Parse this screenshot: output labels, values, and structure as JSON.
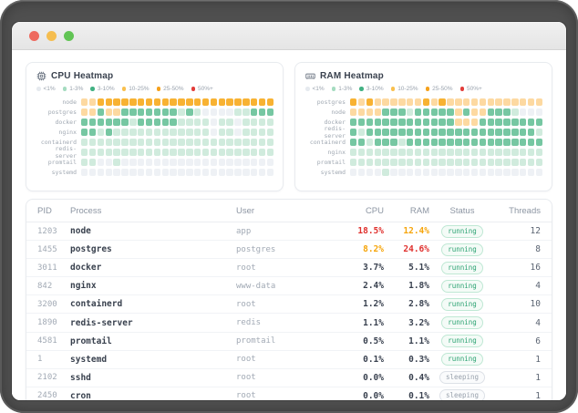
{
  "window": {
    "traffic_lights": {
      "close": "#ee6a5f",
      "minimize": "#f5bd4f",
      "maximize": "#61c454"
    }
  },
  "cell_colors": [
    "#eef1f5",
    "#d0ebdd",
    "#76c7a2",
    "#fdd9a1",
    "#f8b232"
  ],
  "value_colors": {
    "high": "#e0312e",
    "med": "#f6a50b",
    "normal": "#3a4250"
  },
  "legend": [
    {
      "label": "<1%",
      "color": "#e6eaef"
    },
    {
      "label": "1-3%",
      "color": "#a5dcc0"
    },
    {
      "label": "3-10%",
      "color": "#43b183"
    },
    {
      "label": "10-25%",
      "color": "#f9c04f"
    },
    {
      "label": "25-50%",
      "color": "#f5a11c"
    },
    {
      "label": "50%+",
      "color": "#e23d3a"
    }
  ],
  "panels": [
    {
      "title": "CPU Heatmap",
      "icon": "cpu-icon",
      "rows": [
        {
          "label": "node",
          "cells": [
            3,
            3,
            4,
            4,
            4,
            4,
            4,
            4,
            4,
            4,
            4,
            4,
            4,
            4,
            4,
            4,
            4,
            4,
            4,
            4,
            4,
            4,
            4,
            4
          ]
        },
        {
          "label": "postgres",
          "cells": [
            3,
            3,
            2,
            3,
            3,
            2,
            2,
            2,
            2,
            2,
            2,
            2,
            1,
            2,
            1,
            0,
            0,
            0,
            0,
            1,
            1,
            2,
            2,
            2
          ]
        },
        {
          "label": "docker",
          "cells": [
            2,
            2,
            2,
            2,
            2,
            2,
            1,
            2,
            2,
            2,
            2,
            2,
            1,
            1,
            1,
            1,
            0,
            1,
            1,
            0,
            1,
            1,
            1,
            1
          ]
        },
        {
          "label": "nginx",
          "cells": [
            2,
            2,
            1,
            2,
            1,
            1,
            1,
            1,
            1,
            1,
            1,
            1,
            1,
            1,
            1,
            1,
            0,
            1,
            1,
            0,
            1,
            1,
            1,
            1
          ]
        },
        {
          "label": "containerd",
          "cells": [
            1,
            1,
            1,
            1,
            1,
            1,
            1,
            1,
            1,
            1,
            1,
            1,
            1,
            1,
            1,
            1,
            1,
            1,
            1,
            1,
            1,
            1,
            1,
            1
          ]
        },
        {
          "label": "redis-server",
          "cells": [
            1,
            1,
            1,
            1,
            1,
            1,
            1,
            1,
            1,
            1,
            1,
            1,
            1,
            1,
            1,
            1,
            1,
            1,
            1,
            1,
            1,
            1,
            1,
            1
          ]
        },
        {
          "label": "promtail",
          "cells": [
            1,
            1,
            0,
            0,
            1,
            0,
            0,
            0,
            0,
            0,
            0,
            0,
            0,
            0,
            0,
            0,
            0,
            0,
            0,
            0,
            0,
            0,
            0,
            0
          ]
        },
        {
          "label": "systemd",
          "cells": [
            0,
            0,
            0,
            0,
            0,
            0,
            0,
            0,
            0,
            0,
            0,
            0,
            0,
            0,
            0,
            0,
            0,
            0,
            0,
            0,
            0,
            0,
            0,
            0
          ]
        }
      ]
    },
    {
      "title": "RAM Heatmap",
      "icon": "ram-icon",
      "rows": [
        {
          "label": "postgres",
          "cells": [
            4,
            3,
            4,
            3,
            3,
            3,
            3,
            3,
            3,
            4,
            3,
            4,
            3,
            3,
            3,
            3,
            3,
            3,
            3,
            3,
            3,
            3,
            3,
            3
          ]
        },
        {
          "label": "node",
          "cells": [
            3,
            3,
            3,
            3,
            2,
            2,
            2,
            1,
            2,
            2,
            2,
            2,
            2,
            3,
            2,
            3,
            3,
            2,
            2,
            2,
            1,
            0,
            0,
            0
          ]
        },
        {
          "label": "docker",
          "cells": [
            2,
            2,
            2,
            2,
            2,
            2,
            2,
            2,
            2,
            2,
            2,
            2,
            2,
            3,
            3,
            3,
            2,
            2,
            2,
            2,
            2,
            2,
            2,
            2
          ]
        },
        {
          "label": "redis-server",
          "cells": [
            2,
            1,
            2,
            2,
            2,
            2,
            2,
            2,
            2,
            2,
            2,
            2,
            2,
            2,
            2,
            2,
            2,
            2,
            2,
            2,
            2,
            2,
            2,
            1
          ]
        },
        {
          "label": "containerd",
          "cells": [
            2,
            2,
            1,
            2,
            2,
            2,
            1,
            2,
            2,
            2,
            2,
            2,
            2,
            2,
            2,
            2,
            2,
            2,
            2,
            2,
            2,
            2,
            2,
            2
          ]
        },
        {
          "label": "nginx",
          "cells": [
            1,
            1,
            1,
            1,
            1,
            1,
            1,
            1,
            1,
            1,
            1,
            1,
            1,
            1,
            1,
            1,
            1,
            1,
            1,
            1,
            1,
            1,
            1,
            1
          ]
        },
        {
          "label": "promtail",
          "cells": [
            1,
            1,
            1,
            1,
            1,
            1,
            1,
            1,
            1,
            1,
            1,
            1,
            1,
            1,
            1,
            1,
            1,
            1,
            1,
            1,
            1,
            1,
            1,
            1
          ]
        },
        {
          "label": "systemd",
          "cells": [
            0,
            0,
            0,
            0,
            1,
            0,
            0,
            0,
            0,
            0,
            0,
            0,
            0,
            0,
            0,
            0,
            0,
            0,
            0,
            0,
            0,
            0,
            0,
            0
          ]
        }
      ]
    }
  ],
  "table": {
    "columns": [
      "PID",
      "Process",
      "User",
      "CPU",
      "RAM",
      "Status",
      "Threads"
    ],
    "rows": [
      {
        "pid": "1203",
        "process": "node",
        "user": "app",
        "cpu": "18.5%",
        "cpu_level": "high",
        "ram": "12.4%",
        "ram_level": "med",
        "status": "running",
        "threads": "12"
      },
      {
        "pid": "1455",
        "process": "postgres",
        "user": "postgres",
        "cpu": "8.2%",
        "cpu_level": "med",
        "ram": "24.6%",
        "ram_level": "high",
        "status": "running",
        "threads": "8"
      },
      {
        "pid": "3011",
        "process": "docker",
        "user": "root",
        "cpu": "3.7%",
        "cpu_level": "normal",
        "ram": "5.1%",
        "ram_level": "normal",
        "status": "running",
        "threads": "16"
      },
      {
        "pid": "842",
        "process": "nginx",
        "user": "www-data",
        "cpu": "2.4%",
        "cpu_level": "normal",
        "ram": "1.8%",
        "ram_level": "normal",
        "status": "running",
        "threads": "4"
      },
      {
        "pid": "3200",
        "process": "containerd",
        "user": "root",
        "cpu": "1.2%",
        "cpu_level": "normal",
        "ram": "2.8%",
        "ram_level": "normal",
        "status": "running",
        "threads": "10"
      },
      {
        "pid": "1890",
        "process": "redis-server",
        "user": "redis",
        "cpu": "1.1%",
        "cpu_level": "normal",
        "ram": "3.2%",
        "ram_level": "normal",
        "status": "running",
        "threads": "4"
      },
      {
        "pid": "4581",
        "process": "promtail",
        "user": "promtail",
        "cpu": "0.5%",
        "cpu_level": "normal",
        "ram": "1.1%",
        "ram_level": "normal",
        "status": "running",
        "threads": "6"
      },
      {
        "pid": "1",
        "process": "systemd",
        "user": "root",
        "cpu": "0.1%",
        "cpu_level": "normal",
        "ram": "0.3%",
        "ram_level": "normal",
        "status": "running",
        "threads": "1"
      },
      {
        "pid": "2102",
        "process": "sshd",
        "user": "root",
        "cpu": "0.0%",
        "cpu_level": "normal",
        "ram": "0.4%",
        "ram_level": "normal",
        "status": "sleeping",
        "threads": "1"
      },
      {
        "pid": "2450",
        "process": "cron",
        "user": "root",
        "cpu": "0.0%",
        "cpu_level": "normal",
        "ram": "0.1%",
        "ram_level": "normal",
        "status": "sleeping",
        "threads": "1"
      }
    ]
  }
}
